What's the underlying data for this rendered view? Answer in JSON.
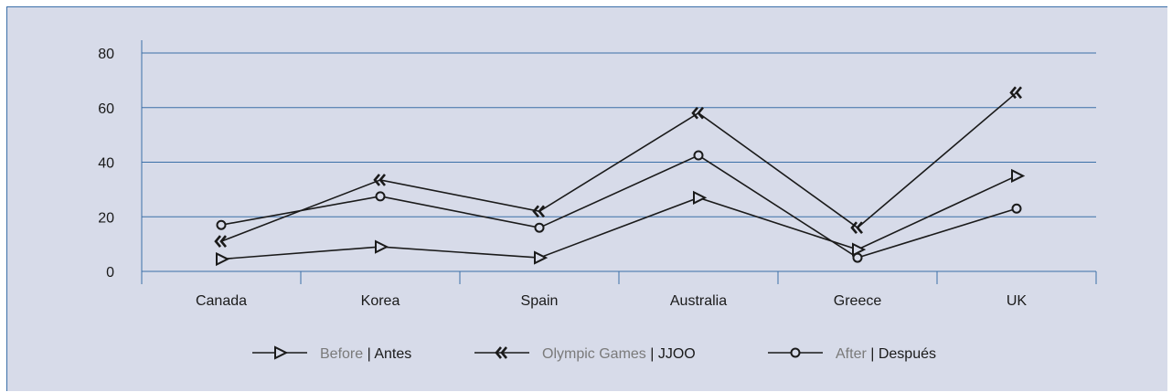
{
  "chart_data": {
    "type": "line",
    "categories": [
      "Canada",
      "Korea",
      "Spain",
      "Australia",
      "Greece",
      "UK"
    ],
    "ylim": [
      0,
      80
    ],
    "yticks": [
      0,
      20,
      40,
      60,
      80
    ],
    "grid": true,
    "legend_position": "bottom-center",
    "series": [
      {
        "key": "before",
        "name_en": "Before",
        "name_es": "Antes",
        "marker": "triangle-right",
        "values": [
          4.5,
          9,
          5,
          27,
          8,
          35
        ]
      },
      {
        "key": "olympic",
        "name_en": "Olympic Games",
        "name_es": "JJOO",
        "marker": "double-chevron-left",
        "values": [
          11,
          33.5,
          22,
          58,
          16,
          65.5
        ]
      },
      {
        "key": "after",
        "name_en": "After",
        "name_es": "Después",
        "marker": "circle",
        "values": [
          17,
          27.5,
          16,
          42.5,
          5,
          23
        ]
      }
    ],
    "colors": {
      "line": "#1a1a1a",
      "grid": "#3b6fa8",
      "axis": "#3b6fa8",
      "background": "#d7dbe9"
    }
  }
}
